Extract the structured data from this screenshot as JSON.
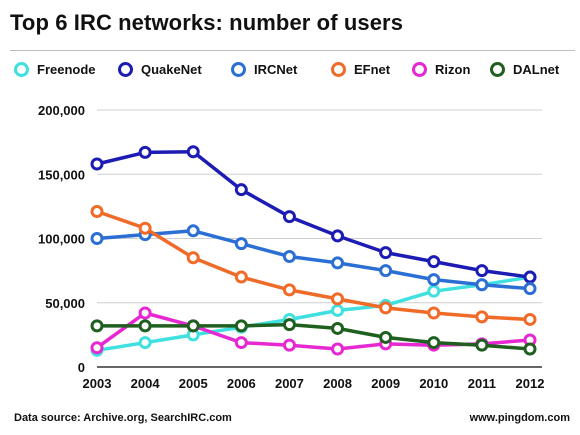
{
  "title": "Top 6 IRC networks: number of users",
  "footer": {
    "source": "Data source: Archive.org, SearchIRC.com",
    "site": "www.pingdom.com"
  },
  "colors": {
    "Freenode": "#40e0e0",
    "QuakeNet": "#1c1cb4",
    "IRCNet": "#2c6fd4",
    "EFnet": "#f06a28",
    "Rizon": "#e628d2",
    "DALnet": "#1f5f1f"
  },
  "chart_data": {
    "type": "line",
    "title": "Top 6 IRC networks: number of users",
    "xlabel": "",
    "ylabel": "",
    "categories": [
      "2003",
      "2004",
      "2005",
      "2006",
      "2007",
      "2008",
      "2009",
      "2010",
      "2011",
      "2012"
    ],
    "ylim": [
      0,
      200000
    ],
    "yticks": [
      0,
      50000,
      100000,
      150000,
      200000
    ],
    "ytick_labels": [
      "0",
      "50,000",
      "100,000",
      "150,000",
      "200,000"
    ],
    "grid": true,
    "legend_position": "top",
    "series": [
      {
        "name": "Freenode",
        "values": [
          13000,
          19000,
          25000,
          31000,
          37000,
          44000,
          48000,
          59000,
          64000,
          70000
        ]
      },
      {
        "name": "QuakeNet",
        "values": [
          158000,
          167000,
          167500,
          138000,
          117000,
          102000,
          89000,
          82000,
          75000,
          70000
        ]
      },
      {
        "name": "IRCNet",
        "values": [
          100000,
          103000,
          106000,
          96000,
          86000,
          81000,
          75000,
          68000,
          64000,
          61000
        ]
      },
      {
        "name": "EFnet",
        "values": [
          121000,
          108000,
          85000,
          70000,
          60000,
          53000,
          46000,
          42000,
          39000,
          37000
        ]
      },
      {
        "name": "Rizon",
        "values": [
          15000,
          42000,
          32000,
          19000,
          17000,
          14000,
          18000,
          17000,
          18000,
          21000
        ]
      },
      {
        "name": "DALnet",
        "values": [
          32000,
          32000,
          32000,
          32000,
          33000,
          30000,
          23000,
          19000,
          17000,
          14000
        ]
      }
    ]
  }
}
